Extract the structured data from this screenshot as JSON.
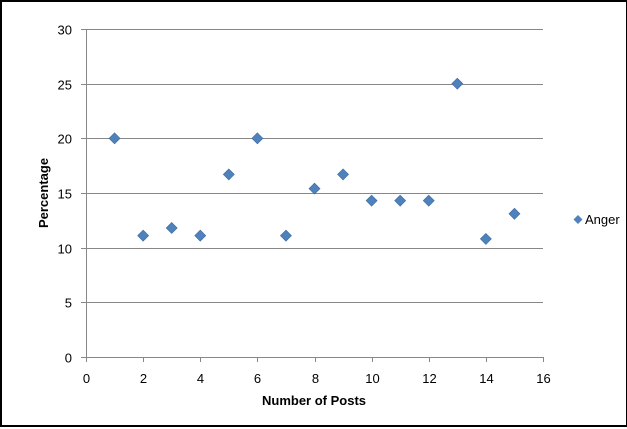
{
  "chart_data": {
    "type": "scatter",
    "title": "",
    "xlabel": "Number of Posts",
    "ylabel": "Percentage",
    "xlim": [
      0,
      16
    ],
    "ylim": [
      0,
      30
    ],
    "x_ticks": [
      0,
      2,
      4,
      6,
      8,
      10,
      12,
      14,
      16
    ],
    "y_ticks": [
      0,
      5,
      10,
      15,
      20,
      25,
      30
    ],
    "grid": "horizontal",
    "legend_position": "right",
    "series": [
      {
        "name": "Anger",
        "color": "#4F81BD",
        "marker": "diamond",
        "points": [
          {
            "x": 1,
            "y": 20.0
          },
          {
            "x": 2,
            "y": 11.1
          },
          {
            "x": 3,
            "y": 11.8
          },
          {
            "x": 4,
            "y": 11.1
          },
          {
            "x": 5,
            "y": 16.7
          },
          {
            "x": 6,
            "y": 20.0
          },
          {
            "x": 7,
            "y": 11.1
          },
          {
            "x": 8,
            "y": 15.4
          },
          {
            "x": 9,
            "y": 16.7
          },
          {
            "x": 10,
            "y": 14.3
          },
          {
            "x": 11,
            "y": 14.3
          },
          {
            "x": 12,
            "y": 14.3
          },
          {
            "x": 13,
            "y": 25.0
          },
          {
            "x": 14,
            "y": 10.8
          },
          {
            "x": 15,
            "y": 13.1
          }
        ]
      }
    ]
  }
}
